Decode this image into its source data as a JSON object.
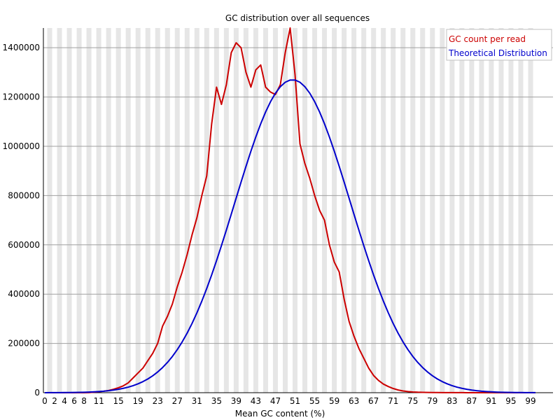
{
  "chart_data": {
    "type": "line",
    "title": "GC distribution over all sequences",
    "xlabel": "Mean GC content (%)",
    "ylabel": "",
    "xlim": [
      0,
      100
    ],
    "ylim": [
      0,
      1480000
    ],
    "x_tick_labels": [
      "0",
      "2",
      "4",
      "6",
      "8",
      "11",
      "15",
      "19",
      "23",
      "27",
      "31",
      "35",
      "39",
      "43",
      "47",
      "51",
      "55",
      "59",
      "63",
      "67",
      "71",
      "75",
      "79",
      "83",
      "87",
      "91",
      "95",
      "99"
    ],
    "y_tick_labels": [
      "0",
      "200000",
      "400000",
      "600000",
      "800000",
      "1000000",
      "1200000",
      "1400000"
    ],
    "y_ticks": [
      0,
      200000,
      400000,
      600000,
      800000,
      1000000,
      1200000,
      1400000
    ],
    "grid": true,
    "legend_position": "top-right",
    "series": [
      {
        "name": "GC count per read",
        "color": "#cc0000",
        "x": [
          0,
          1,
          2,
          3,
          4,
          5,
          6,
          7,
          8,
          9,
          10,
          11,
          12,
          13,
          14,
          15,
          16,
          17,
          18,
          19,
          20,
          21,
          22,
          23,
          24,
          25,
          26,
          27,
          28,
          29,
          30,
          31,
          32,
          33,
          34,
          35,
          36,
          37,
          38,
          39,
          40,
          41,
          42,
          43,
          44,
          45,
          46,
          47,
          48,
          49,
          50,
          51,
          52,
          53,
          54,
          55,
          56,
          57,
          58,
          59,
          60,
          61,
          62,
          63,
          64,
          65,
          66,
          67,
          68,
          69,
          70,
          71,
          72,
          73,
          74,
          75,
          76,
          77,
          78,
          79,
          80,
          81,
          82,
          83,
          84,
          85,
          86,
          87,
          88,
          89,
          90,
          91,
          92,
          93,
          94,
          95,
          96,
          97,
          98,
          99,
          100
        ],
        "values": [
          0,
          0,
          0,
          0,
          0,
          0,
          0,
          0,
          0,
          500,
          2000,
          4000,
          6000,
          9000,
          14000,
          20000,
          28000,
          40000,
          60000,
          80000,
          100000,
          130000,
          160000,
          200000,
          270000,
          310000,
          360000,
          430000,
          490000,
          560000,
          640000,
          710000,
          800000,
          880000,
          1090000,
          1240000,
          1170000,
          1250000,
          1380000,
          1420000,
          1400000,
          1300000,
          1240000,
          1310000,
          1330000,
          1240000,
          1220000,
          1210000,
          1250000,
          1380000,
          1480000,
          1290000,
          1010000,
          930000,
          870000,
          800000,
          740000,
          700000,
          600000,
          530000,
          490000,
          380000,
          290000,
          230000,
          180000,
          140000,
          100000,
          70000,
          50000,
          35000,
          25000,
          17000,
          11000,
          7000,
          4500,
          3000,
          2000,
          1500,
          1000,
          800,
          600,
          500,
          400,
          300,
          250,
          200,
          150,
          120,
          100,
          80,
          60,
          50,
          40,
          30,
          25,
          20,
          15,
          10,
          8,
          5,
          0
        ]
      },
      {
        "name": "Theoretical Distribution",
        "color": "#0000cc",
        "mean": 50.5,
        "sd": 11.8,
        "peak": 1270000
      }
    ]
  }
}
